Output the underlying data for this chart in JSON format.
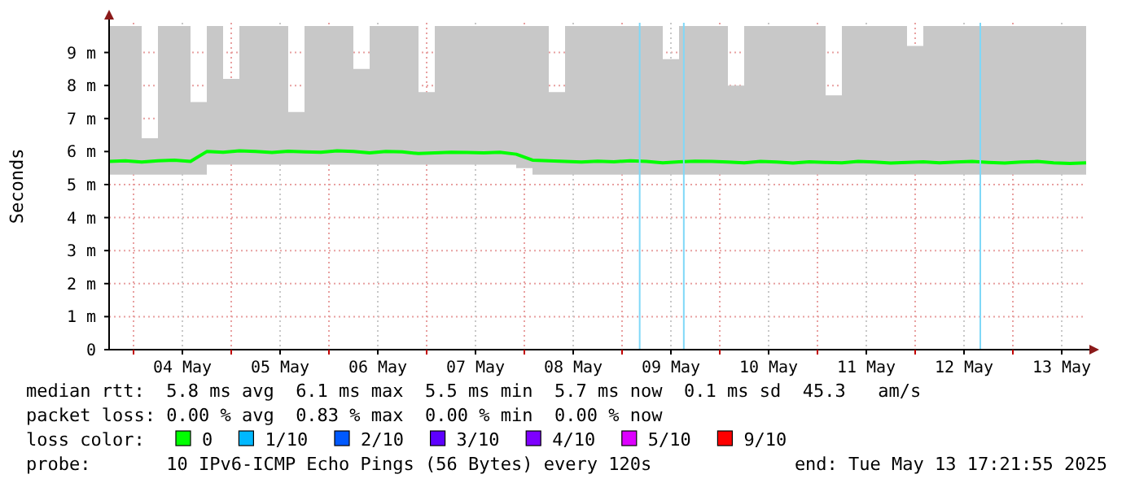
{
  "chart_data": {
    "type": "line",
    "ylabel": "Seconds",
    "xlim": [
      "2025-05-03T18:00",
      "2025-05-13T18:00"
    ],
    "xticks": [
      {
        "value": "2025-05-04T00:00",
        "label": null
      },
      {
        "value": "2025-05-04T12:00",
        "label": "04 May"
      },
      {
        "value": "2025-05-05T00:00",
        "label": null
      },
      {
        "value": "2025-05-05T12:00",
        "label": "05 May"
      },
      {
        "value": "2025-05-06T00:00",
        "label": null
      },
      {
        "value": "2025-05-06T12:00",
        "label": "06 May"
      },
      {
        "value": "2025-05-07T00:00",
        "label": null
      },
      {
        "value": "2025-05-07T12:00",
        "label": "07 May"
      },
      {
        "value": "2025-05-08T00:00",
        "label": null
      },
      {
        "value": "2025-05-08T12:00",
        "label": "08 May"
      },
      {
        "value": "2025-05-09T00:00",
        "label": null
      },
      {
        "value": "2025-05-09T12:00",
        "label": "09 May"
      },
      {
        "value": "2025-05-10T00:00",
        "label": null
      },
      {
        "value": "2025-05-10T12:00",
        "label": "10 May"
      },
      {
        "value": "2025-05-11T00:00",
        "label": null
      },
      {
        "value": "2025-05-11T12:00",
        "label": "11 May"
      },
      {
        "value": "2025-05-12T00:00",
        "label": null
      },
      {
        "value": "2025-05-12T12:00",
        "label": "12 May"
      },
      {
        "value": "2025-05-13T00:00",
        "label": null
      },
      {
        "value": "2025-05-13T12:00",
        "label": "13 May"
      }
    ],
    "ylim": [
      0,
      9.9
    ],
    "yticks": [
      0,
      {
        "value": 1,
        "label": "1 m"
      },
      {
        "value": 2,
        "label": "2 m"
      },
      {
        "value": 3,
        "label": "3 m"
      },
      {
        "value": 4,
        "label": "4 m"
      },
      {
        "value": 5,
        "label": "5 m"
      },
      {
        "value": 6,
        "label": "6 m"
      },
      {
        "value": 7,
        "label": "7 m"
      },
      {
        "value": 8,
        "label": "8 m"
      },
      {
        "value": 9,
        "label": "9 m"
      }
    ],
    "grid": true,
    "legend": "bottom",
    "legend_title": "loss color:",
    "x": [
      "2025-05-03T18:00",
      "2025-05-03T22:00",
      "2025-05-04T02:00",
      "2025-05-04T06:00",
      "2025-05-04T10:00",
      "2025-05-04T14:00",
      "2025-05-04T18:00",
      "2025-05-04T22:00",
      "2025-05-05T02:00",
      "2025-05-05T06:00",
      "2025-05-05T10:00",
      "2025-05-05T14:00",
      "2025-05-05T18:00",
      "2025-05-05T22:00",
      "2025-05-06T02:00",
      "2025-05-06T06:00",
      "2025-05-06T10:00",
      "2025-05-06T14:00",
      "2025-05-06T18:00",
      "2025-05-06T22:00",
      "2025-05-07T02:00",
      "2025-05-07T06:00",
      "2025-05-07T10:00",
      "2025-05-07T14:00",
      "2025-05-07T18:00",
      "2025-05-07T22:00",
      "2025-05-08T02:00",
      "2025-05-08T06:00",
      "2025-05-08T10:00",
      "2025-05-08T14:00",
      "2025-05-08T18:00",
      "2025-05-08T22:00",
      "2025-05-09T02:00",
      "2025-05-09T06:00",
      "2025-05-09T10:00",
      "2025-05-09T14:00",
      "2025-05-09T18:00",
      "2025-05-09T22:00",
      "2025-05-10T02:00",
      "2025-05-10T06:00",
      "2025-05-10T10:00",
      "2025-05-10T14:00",
      "2025-05-10T18:00",
      "2025-05-10T22:00",
      "2025-05-11T02:00",
      "2025-05-11T06:00",
      "2025-05-11T10:00",
      "2025-05-11T14:00",
      "2025-05-11T18:00",
      "2025-05-11T22:00",
      "2025-05-12T02:00",
      "2025-05-12T06:00",
      "2025-05-12T10:00",
      "2025-05-12T14:00",
      "2025-05-12T18:00",
      "2025-05-12T22:00",
      "2025-05-13T02:00",
      "2025-05-13T06:00",
      "2025-05-13T10:00",
      "2025-05-13T14:00",
      "2025-05-13T18:00"
    ],
    "series": [
      {
        "name": "0",
        "color": "#00ff00",
        "values": [
          5.7,
          5.72,
          5.68,
          5.72,
          5.74,
          5.7,
          6.0,
          5.98,
          6.02,
          6.0,
          5.97,
          6.01,
          5.99,
          5.98,
          6.02,
          6.0,
          5.96,
          6.0,
          5.99,
          5.94,
          5.96,
          5.98,
          5.97,
          5.96,
          5.98,
          5.92,
          5.74,
          5.72,
          5.7,
          5.68,
          5.71,
          5.69,
          5.72,
          5.7,
          5.66,
          5.69,
          5.71,
          5.7,
          5.68,
          5.66,
          5.7,
          5.68,
          5.65,
          5.69,
          5.67,
          5.66,
          5.7,
          5.68,
          5.65,
          5.67,
          5.69,
          5.66,
          5.68,
          5.7,
          5.67,
          5.65,
          5.68,
          5.7,
          5.66,
          5.64,
          5.66
        ],
        "lower": [
          5.3,
          5.3,
          5.3,
          5.3,
          5.3,
          5.3,
          5.6,
          5.6,
          5.6,
          5.6,
          5.6,
          5.6,
          5.6,
          5.6,
          5.6,
          5.6,
          5.6,
          5.6,
          5.6,
          5.6,
          5.6,
          5.6,
          5.6,
          5.6,
          5.6,
          5.5,
          5.3,
          5.3,
          5.3,
          5.3,
          5.3,
          5.3,
          5.3,
          5.3,
          5.3,
          5.3,
          5.3,
          5.3,
          5.3,
          5.3,
          5.3,
          5.3,
          5.3,
          5.3,
          5.3,
          5.3,
          5.3,
          5.3,
          5.3,
          5.3,
          5.3,
          5.3,
          5.3,
          5.3,
          5.3,
          5.3,
          5.3,
          5.3,
          5.3,
          5.3,
          5.3
        ],
        "upper": [
          9.8,
          9.8,
          6.4,
          9.8,
          9.8,
          7.5,
          9.8,
          8.2,
          9.8,
          9.8,
          9.8,
          7.2,
          9.8,
          9.8,
          9.8,
          8.5,
          9.8,
          9.8,
          9.8,
          7.8,
          9.8,
          9.8,
          9.8,
          9.8,
          9.8,
          9.8,
          9.8,
          7.8,
          9.8,
          9.8,
          9.8,
          9.8,
          9.8,
          9.8,
          8.8,
          9.8,
          9.8,
          9.8,
          8.0,
          9.8,
          9.8,
          9.8,
          9.8,
          9.8,
          7.7,
          9.8,
          9.8,
          9.8,
          9.8,
          9.2,
          9.8,
          9.8,
          9.8,
          9.8,
          9.8,
          9.8,
          9.8,
          9.8,
          9.8,
          9.8,
          9.8
        ]
      },
      {
        "name": "1/10",
        "color": "#00b8ff",
        "values": [
          null,
          null,
          null,
          null,
          null,
          null,
          null,
          null,
          null,
          null,
          null,
          null,
          null,
          null,
          null,
          null,
          null,
          null,
          null,
          null,
          null,
          null,
          null,
          null,
          null,
          null,
          null,
          null,
          null,
          null,
          null,
          null,
          null,
          null,
          null,
          null,
          null,
          null,
          null,
          null,
          null,
          null,
          null,
          null,
          null,
          null,
          null,
          null,
          null,
          null,
          null,
          null,
          null,
          null,
          null,
          null,
          null,
          null,
          null,
          null,
          null
        ]
      },
      {
        "name": "2/10",
        "color": "#0059ff",
        "values": [
          null,
          null,
          null,
          null,
          null,
          null,
          null,
          null,
          null,
          null,
          null,
          null,
          null,
          null,
          null,
          null,
          null,
          null,
          null,
          null,
          null,
          null,
          null,
          null,
          null,
          null,
          null,
          null,
          null,
          null,
          null,
          null,
          null,
          null,
          null,
          null,
          null,
          null,
          null,
          null,
          null,
          null,
          null,
          null,
          null,
          null,
          null,
          null,
          null,
          null,
          null,
          null,
          null,
          null,
          null,
          null,
          null,
          null,
          null,
          null,
          null
        ]
      },
      {
        "name": "3/10",
        "color": "#5e00ff",
        "values": [
          null,
          null,
          null,
          null,
          null,
          null,
          null,
          null,
          null,
          null,
          null,
          null,
          null,
          null,
          null,
          null,
          null,
          null,
          null,
          null,
          null,
          null,
          null,
          null,
          null,
          null,
          null,
          null,
          null,
          null,
          null,
          null,
          null,
          null,
          null,
          null,
          null,
          null,
          null,
          null,
          null,
          null,
          null,
          null,
          null,
          null,
          null,
          null,
          null,
          null,
          null,
          null,
          null,
          null,
          null,
          null,
          null,
          null,
          null,
          null,
          null
        ]
      },
      {
        "name": "4/10",
        "color": "#7e00ff",
        "values": [
          null,
          null,
          null,
          null,
          null,
          null,
          null,
          null,
          null,
          null,
          null,
          null,
          null,
          null,
          null,
          null,
          null,
          null,
          null,
          null,
          null,
          null,
          null,
          null,
          null,
          null,
          null,
          null,
          null,
          null,
          null,
          null,
          null,
          null,
          null,
          null,
          null,
          null,
          null,
          null,
          null,
          null,
          null,
          null,
          null,
          null,
          null,
          null,
          null,
          null,
          null,
          null,
          null,
          null,
          null,
          null,
          null,
          null,
          null,
          null,
          null
        ]
      },
      {
        "name": "5/10",
        "color": "#dd00ff",
        "values": [
          null,
          null,
          null,
          null,
          null,
          null,
          null,
          null,
          null,
          null,
          null,
          null,
          null,
          null,
          null,
          null,
          null,
          null,
          null,
          null,
          null,
          null,
          null,
          null,
          null,
          null,
          null,
          null,
          null,
          null,
          null,
          null,
          null,
          null,
          null,
          null,
          null,
          null,
          null,
          null,
          null,
          null,
          null,
          null,
          null,
          null,
          null,
          null,
          null,
          null,
          null,
          null,
          null,
          null,
          null,
          null,
          null,
          null,
          null,
          null,
          null
        ]
      },
      {
        "name": "9/10",
        "color": "#ff0000",
        "values": [
          null,
          null,
          null,
          null,
          null,
          null,
          null,
          null,
          null,
          null,
          null,
          null,
          null,
          null,
          null,
          null,
          null,
          null,
          null,
          null,
          null,
          null,
          null,
          null,
          null,
          null,
          null,
          null,
          null,
          null,
          null,
          null,
          null,
          null,
          null,
          null,
          null,
          null,
          null,
          null,
          null,
          null,
          null,
          null,
          null,
          null,
          null,
          null,
          null,
          null,
          null,
          null,
          null,
          null,
          null,
          null,
          null,
          null,
          null,
          null,
          null
        ]
      }
    ],
    "ref_lines": [
      {
        "axis": "x",
        "value": "2025-05-09T04:20",
        "color": "#80d8f8"
      },
      {
        "axis": "x",
        "value": "2025-05-09T15:10",
        "color": "#80d8f8"
      },
      {
        "axis": "x",
        "value": "2025-05-12T16:00",
        "color": "#80d8f8"
      }
    ],
    "annotations": [
      "median rtt:  5.8 ms avg  6.1 ms max  5.5 ms min  5.7 ms now  0.1 ms sd  45.3   am/s",
      "packet loss: 0.00 % avg  0.83 % max  0.00 % min  0.00 % now",
      "probe:       10 IPv6-ICMP Echo Pings (56 Bytes) every 120s",
      "end: Tue May 13 17:21:55 2025"
    ]
  }
}
